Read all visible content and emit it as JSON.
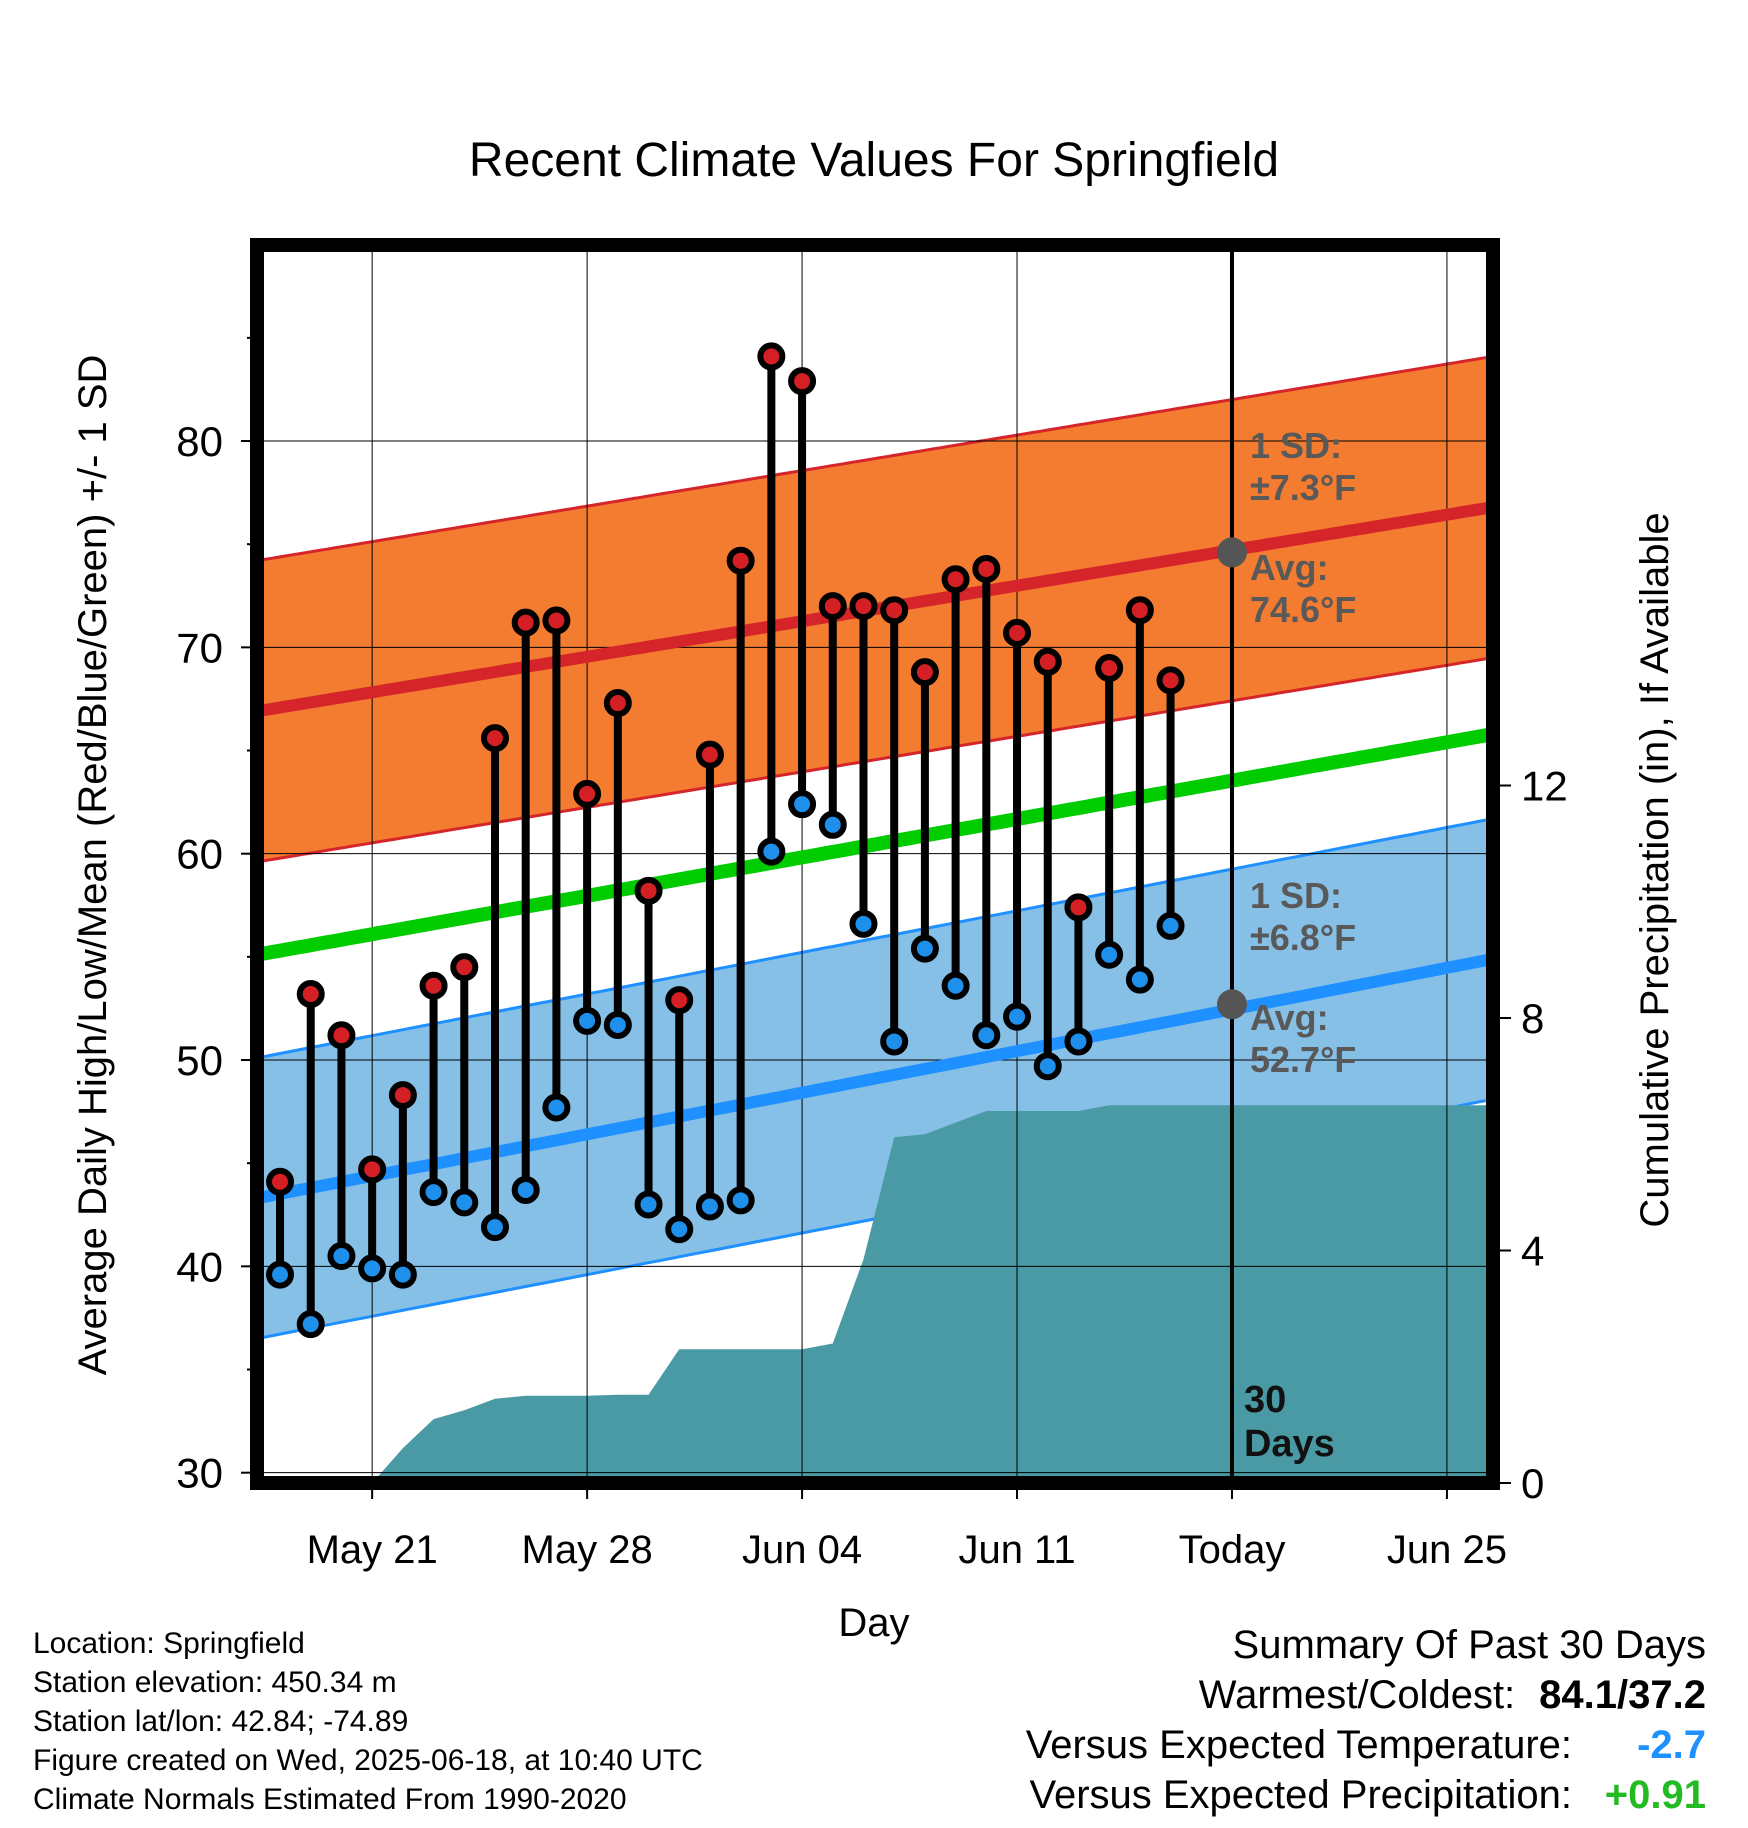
{
  "chart_data": {
    "type": "line",
    "title": "Recent Climate Values For Springfield",
    "xlabel": "Day",
    "ylabel": "Average Daily High/Low/Mean (Red/Blue/Green) +/- 1 SD",
    "y2label": "Cumulative Precipitation (in), If Available",
    "ylim": [
      29.5,
      89.5
    ],
    "y2lim": [
      0,
      21.3
    ],
    "xlim_days": [
      -0.75,
      39.5
    ],
    "yticks": [
      "30",
      "40",
      "50",
      "60",
      "70",
      "80"
    ],
    "y2ticks": [
      "0",
      "4",
      "8",
      "12"
    ],
    "xticks": [
      {
        "day": 3,
        "label": "May 21"
      },
      {
        "day": 10,
        "label": "May 28"
      },
      {
        "day": 17,
        "label": "Jun 04"
      },
      {
        "day": 24,
        "label": "Jun 11"
      },
      {
        "day": 31,
        "label": "Today"
      },
      {
        "day": 38,
        "label": "Jun 25"
      }
    ],
    "x_dates": [
      "May 18",
      "May 19",
      "May 20",
      "May 21",
      "May 22",
      "May 23",
      "May 24",
      "May 25",
      "May 26",
      "May 27",
      "May 28",
      "May 29",
      "May 30",
      "May 31",
      "Jun 01",
      "Jun 02",
      "Jun 03",
      "Jun 04",
      "Jun 05",
      "Jun 06",
      "Jun 07",
      "Jun 08",
      "Jun 09",
      "Jun 10",
      "Jun 11",
      "Jun 12",
      "Jun 13",
      "Jun 14",
      "Jun 15",
      "Jun 16",
      "Jun 17"
    ],
    "observed_high": [
      44.1,
      53.2,
      51.2,
      44.7,
      48.3,
      53.6,
      54.5,
      65.6,
      71.2,
      71.3,
      62.9,
      67.3,
      58.2,
      52.9,
      64.8,
      74.2,
      84.1,
      82.9,
      72.0,
      72.0,
      71.8,
      68.8,
      73.3,
      73.8,
      70.7,
      69.3,
      57.4,
      69.0,
      71.8,
      68.4
    ],
    "observed_low": [
      39.6,
      37.2,
      40.5,
      39.9,
      39.6,
      43.6,
      43.1,
      41.9,
      43.7,
      47.7,
      51.9,
      51.7,
      43.0,
      41.8,
      42.9,
      43.2,
      60.1,
      62.4,
      61.4,
      56.6,
      50.9,
      55.4,
      53.6,
      51.2,
      52.1,
      49.7,
      50.9,
      55.1,
      53.9,
      56.5
    ],
    "normal_high": {
      "days": [
        -0.75,
        39.5
      ],
      "values": [
        66.9,
        76.8
      ]
    },
    "normal_high_sd": 7.3,
    "normal_low": {
      "days": [
        -0.75,
        39.5
      ],
      "values": [
        43.3,
        54.9
      ]
    },
    "normal_low_sd": 6.8,
    "normal_mean": {
      "days": [
        -0.75,
        39.5
      ],
      "values": [
        55.1,
        65.8
      ]
    },
    "precip_cumulative": {
      "days": [
        -0.75,
        3,
        4,
        5,
        6,
        7,
        8,
        9,
        10,
        11,
        12,
        13,
        14,
        15,
        16,
        17,
        18,
        19,
        20,
        21,
        22,
        23,
        24,
        25,
        26,
        27,
        31,
        39.5
      ],
      "values": [
        0,
        0,
        0.6,
        1.1,
        1.25,
        1.45,
        1.5,
        1.5,
        1.5,
        1.52,
        1.52,
        2.3,
        2.3,
        2.3,
        2.3,
        2.3,
        2.4,
        3.85,
        5.95,
        6.0,
        6.2,
        6.4,
        6.4,
        6.4,
        6.4,
        6.5,
        6.5,
        6.5
      ]
    },
    "annotations": {
      "high_sd": "1 SD:",
      "high_sd_value": "±7.3°F",
      "high_avg": "Avg:",
      "high_avg_value": "74.6°F",
      "low_sd": "1 SD:",
      "low_sd_value": "±6.8°F",
      "low_avg": "Avg:",
      "low_avg_value": "52.7°F",
      "period_count": "30",
      "period_unit": "Days"
    },
    "today_markers": {
      "high_avg": 74.6,
      "low_avg": 52.7
    },
    "colors": {
      "high_band": "#f47c30",
      "high_line": "#d6252a",
      "low_band": "#87c0e6",
      "low_line": "#1e90ff",
      "mean_line": "#00cc00",
      "precip": "#4a9aa5",
      "high_dot": "#d42025",
      "low_dot": "#1e8fea",
      "annotation": "#595959"
    },
    "grid": true
  },
  "info": {
    "location": "Location: Springfield",
    "elevation": "Station elevation: 450.34 m",
    "latlon": "Station lat/lon: 42.84; -74.89",
    "created": "Figure created on Wed, 2025-06-18, at 10:40 UTC",
    "normals": "Climate Normals Estimated From 1990-2020"
  },
  "summary": {
    "title": "Summary Of Past 30 Days",
    "warm_cold_label": "Warmest/Coldest:",
    "warm_cold_value": "84.1/37.2",
    "temp_label": "Versus Expected Temperature:",
    "temp_value": "-2.7",
    "temp_color": "#1e90ff",
    "precip_label": "Versus Expected Precipitation:",
    "precip_value": "+0.91",
    "precip_color": "#22bb22"
  }
}
